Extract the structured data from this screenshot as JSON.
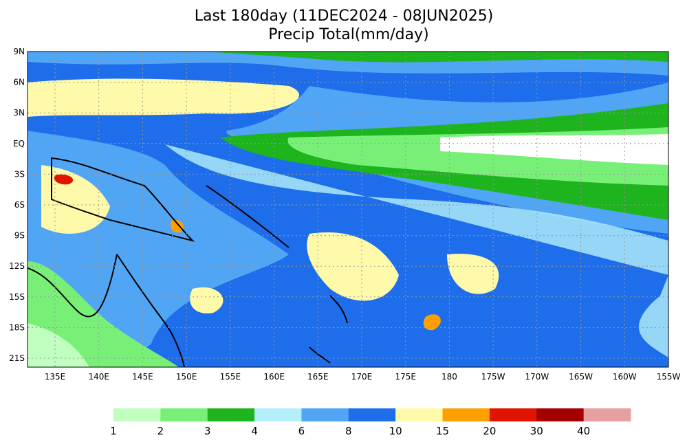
{
  "header": {
    "title": "Last 180day (11DEC2024 - 08JUN2025)",
    "subtitle": "Precip Total(mm/day)"
  },
  "map": {
    "lat_labels": [
      "9N",
      "6N",
      "3N",
      "EQ",
      "3S",
      "6S",
      "9S",
      "12S",
      "15S",
      "18S",
      "21S"
    ],
    "lon_labels": [
      "135E",
      "140E",
      "145E",
      "150E",
      "155E",
      "160E",
      "165E",
      "170E",
      "175E",
      "180",
      "175W",
      "170W",
      "165W",
      "160W",
      "155W"
    ]
  },
  "colorbar": {
    "colors": [
      "#c0ffc0",
      "#78f078",
      "#1eb41e",
      "#b4f0fa",
      "#50a5f5",
      "#1e6eeb",
      "#fffaaa",
      "#ffa000",
      "#e11400",
      "#a50000",
      "#e6a0a0"
    ],
    "labels": [
      "1",
      "2",
      "3",
      "4",
      "6",
      "8",
      "10",
      "15",
      "20",
      "30",
      "40"
    ]
  }
}
